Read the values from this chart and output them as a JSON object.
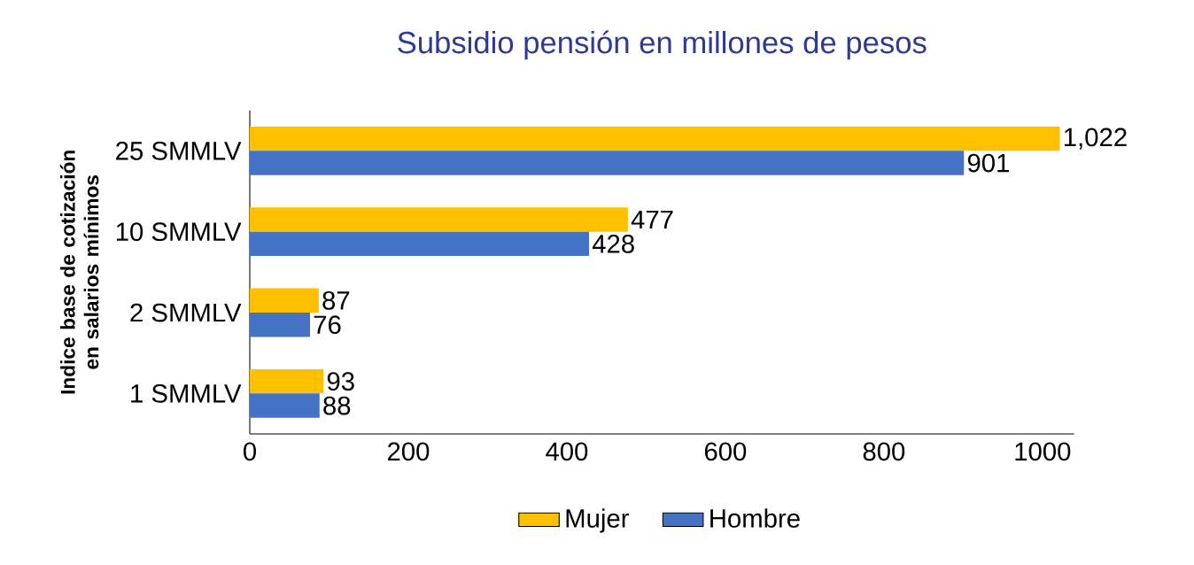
{
  "chart_data": {
    "type": "bar",
    "orientation": "horizontal",
    "title": "Subsidio pensión en millones de pesos",
    "ylabel": "Indice base de cotización en salarios mínimos",
    "categories": [
      "25 SMMLV",
      "10 SMMLV",
      "2 SMMLV",
      "1 SMMLV"
    ],
    "series": [
      {
        "name": "Mujer",
        "color": "#ffc000",
        "values": [
          1022,
          477,
          87,
          93
        ],
        "value_labels": [
          "1,022",
          "477",
          "87",
          "93"
        ]
      },
      {
        "name": "Hombre",
        "color": "#4472c4",
        "values": [
          901,
          428,
          76,
          88
        ],
        "value_labels": [
          "901",
          "428",
          "76",
          "88"
        ]
      }
    ],
    "xlim": [
      0,
      1040
    ],
    "xticks": [
      0,
      200,
      400,
      600,
      800,
      1000
    ],
    "grid": false,
    "legend": "bottom"
  }
}
